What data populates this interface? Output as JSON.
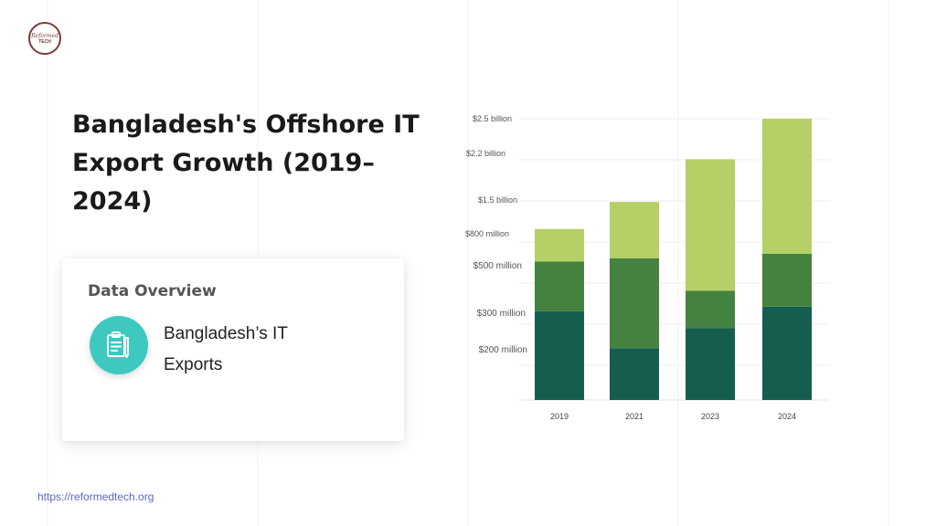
{
  "logo": {
    "line1": "Reformed",
    "line2": "TECH"
  },
  "page": {
    "title": "Bangladesh's Offshore IT Export Growth (2019–2024)",
    "url": "https://reformedtech.org"
  },
  "card": {
    "title": "Data Overview",
    "item_label": "Bangladesh’s IT Exports",
    "icon": "clipboard-list-icon"
  },
  "chart_data": {
    "type": "bar",
    "stacked": true,
    "title": "",
    "xlabel": "",
    "ylabel": "",
    "categories": [
      "2019",
      "2021",
      "2023",
      "2024"
    ],
    "value_labels": [
      "$2.5 billion",
      "$2.2 billion",
      "$1.5 billion",
      "$800 million",
      "$500 million",
      "$300 million",
      "$200 million"
    ],
    "ylim": [
      0,
      2.5
    ],
    "series": [
      {
        "color": "#155e4f",
        "values": [
          0.79,
          0.46,
          0.64,
          0.83
        ]
      },
      {
        "color": "#44823f",
        "values": [
          0.44,
          0.8,
          0.33,
          0.47
        ]
      },
      {
        "color": "#b6cf66",
        "values": [
          0.29,
          0.5,
          1.17,
          1.2
        ]
      }
    ],
    "grid": true,
    "legend": "none"
  }
}
